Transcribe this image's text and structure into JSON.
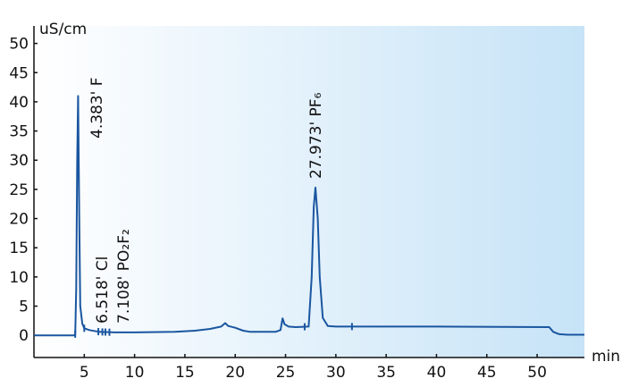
{
  "chart_data": {
    "type": "line",
    "xlabel": "min",
    "ylabel": "uS/cm",
    "xlim": [
      0,
      54.7
    ],
    "ylim": [
      -3.8,
      53
    ],
    "xticks": [
      5,
      10,
      15,
      20,
      25,
      30,
      35,
      40,
      45,
      50
    ],
    "yticks": [
      0,
      5,
      10,
      15,
      20,
      25,
      30,
      35,
      40,
      45,
      50
    ],
    "grid": false,
    "line_color": "#1a56a0",
    "background_gradient": [
      "#ffffff",
      "#c6e3f7"
    ],
    "series": [
      {
        "x": [
          0,
          4.0,
          4.1,
          4.2,
          4.3,
          4.383,
          4.5,
          4.6,
          4.8,
          5.0,
          5.5,
          6.5,
          8,
          10,
          14,
          16,
          17.5,
          18.6,
          19.0,
          19.3,
          20.0,
          20.8,
          21.5,
          24.0,
          24.5,
          24.7,
          24.9,
          25.3,
          26,
          27.3,
          27.6,
          27.8,
          27.973,
          28.2,
          28.4,
          28.7,
          29.2,
          30,
          40,
          51.2,
          51.6,
          52.2,
          53,
          54.7
        ],
        "y": [
          0,
          0,
          0.2,
          8,
          30,
          41,
          20,
          5,
          2,
          1.2,
          0.9,
          0.6,
          0.5,
          0.5,
          0.6,
          0.8,
          1.1,
          1.5,
          2.1,
          1.6,
          1.3,
          0.8,
          0.6,
          0.6,
          0.9,
          2.9,
          1.9,
          1.5,
          1.4,
          1.5,
          10,
          22,
          25.3,
          20,
          10,
          3,
          1.6,
          1.5,
          1.5,
          1.4,
          0.6,
          0.2,
          0.1,
          0.1
        ]
      }
    ],
    "integration_marks": [
      4.1,
      5.0,
      6.4,
      6.8,
      7.1,
      7.5,
      26.9,
      31.6
    ],
    "annotations": [
      {
        "x": 4.383,
        "label": "4.383'  F"
      },
      {
        "x": 6.518,
        "label": "6.518'  Cl"
      },
      {
        "x": 7.108,
        "label": "7.108'  PO₂F₂"
      },
      {
        "x": 27.973,
        "label": "27.973'  PF₆"
      }
    ]
  }
}
